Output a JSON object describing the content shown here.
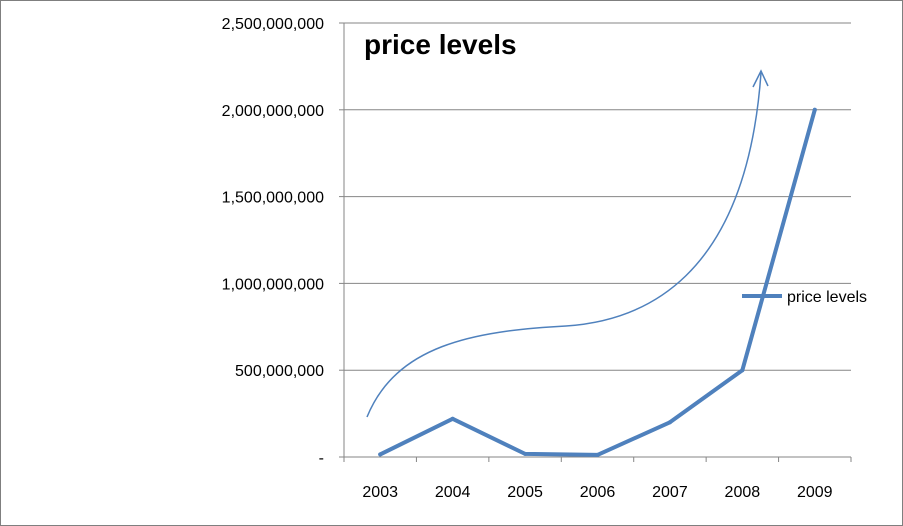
{
  "chart_data": {
    "type": "line",
    "title": "price levels",
    "xlabel": "",
    "ylabel": "",
    "categories": [
      "2003",
      "2004",
      "2005",
      "2006",
      "2007",
      "2008",
      "2009"
    ],
    "series": [
      {
        "name": "price levels",
        "color": "#4f81bd",
        "values": [
          15000000,
          220000000,
          18000000,
          12000000,
          200000000,
          500000000,
          2000000000
        ]
      }
    ],
    "ylim": [
      0,
      2500000000
    ],
    "yticks": [
      0,
      500000000,
      1000000000,
      1500000000,
      2000000000,
      2500000000
    ],
    "ytick_labels": [
      "-",
      "500,000,000",
      "1,000,000,000",
      "1,500,000,000",
      "2,000,000,000",
      "2,500,000,000"
    ],
    "grid": true,
    "legend": "right",
    "annotation": "upward-trend-arrow"
  }
}
